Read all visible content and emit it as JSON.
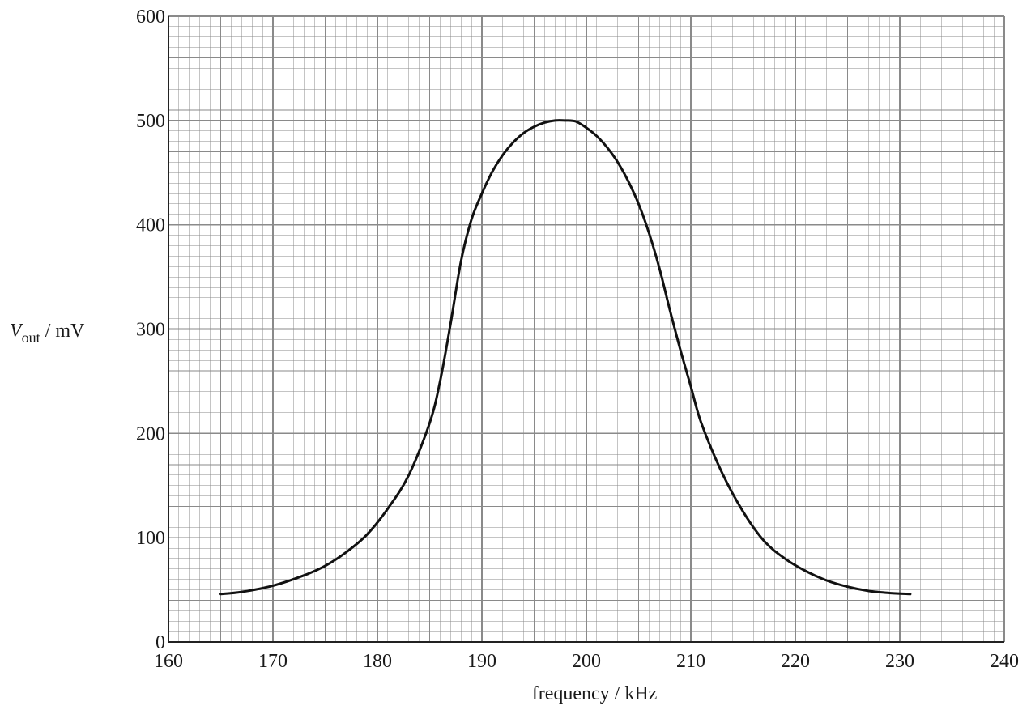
{
  "chart_data": {
    "type": "line",
    "title": "",
    "xlabel": "frequency / kHz",
    "ylabel": {
      "symbol": "V",
      "subscript": "out",
      "unit": " / mV"
    },
    "xlim": [
      160,
      240
    ],
    "ylim": [
      0,
      600
    ],
    "x_ticks": [
      160,
      170,
      180,
      190,
      200,
      210,
      220,
      230,
      240
    ],
    "y_ticks": [
      0,
      100,
      200,
      300,
      400,
      500,
      600
    ],
    "grid": true,
    "grid_minor_per_major": 10,
    "colors": {
      "grid": "#8a8a8a",
      "curve": "#111111",
      "axis": "#222222"
    },
    "series": [
      {
        "x": [
          165,
          167,
          170,
          173,
          175,
          177,
          179,
          181,
          183,
          185,
          186,
          187,
          188,
          189,
          190,
          191,
          192,
          193,
          194,
          195,
          196,
          197,
          198,
          199,
          200,
          201,
          202,
          203,
          204,
          205,
          206,
          207,
          208,
          209,
          210,
          211,
          213,
          215,
          217,
          219,
          221,
          223,
          225,
          227,
          229,
          231
        ],
        "y": [
          46,
          48,
          54,
          64,
          73,
          86,
          103,
          128,
          160,
          210,
          250,
          305,
          365,
          405,
          430,
          451,
          467,
          479,
          488,
          494,
          498,
          500,
          500,
          499,
          493,
          485,
          474,
          460,
          442,
          420,
          392,
          358,
          318,
          280,
          245,
          210,
          162,
          125,
          97,
          80,
          68,
          59,
          53,
          49,
          47,
          46
        ]
      }
    ]
  }
}
